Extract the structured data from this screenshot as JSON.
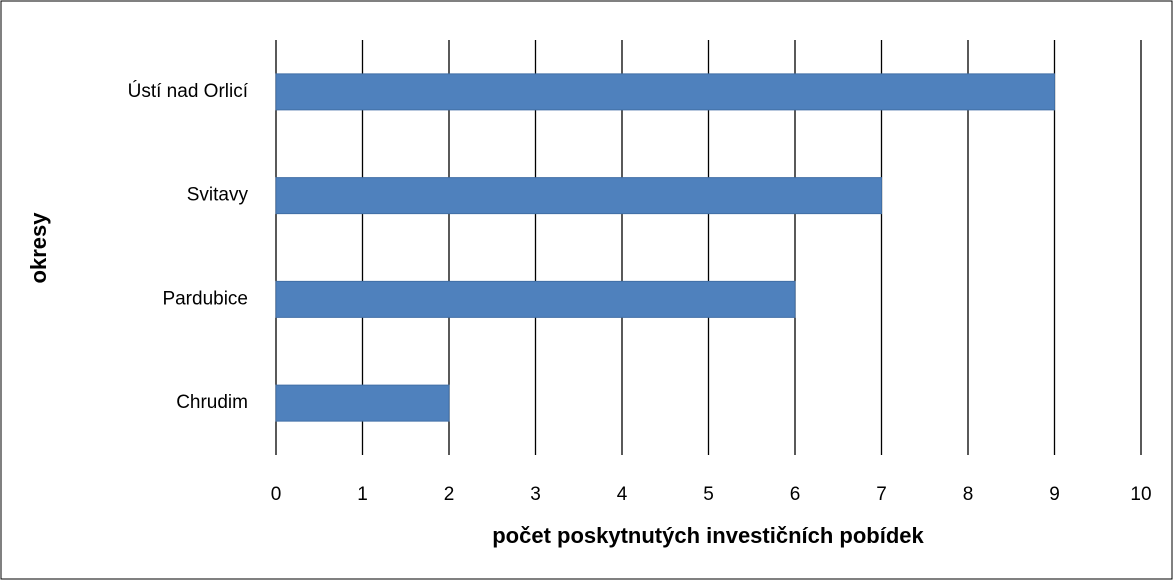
{
  "chart_data": {
    "type": "bar",
    "orientation": "horizontal",
    "xlabel": "počet poskytnutých investičních pobídek",
    "ylabel": "okresy",
    "categories": [
      "Ústí nad Orlicí",
      "Svitavy",
      "Pardubice",
      "Chrudim"
    ],
    "values": [
      9,
      7,
      6,
      2
    ],
    "color": "#4f81bd",
    "xlim": [
      0,
      10
    ],
    "xticks": [
      0,
      1,
      2,
      3,
      4,
      5,
      6,
      7,
      8,
      9,
      10
    ],
    "grid": true
  }
}
